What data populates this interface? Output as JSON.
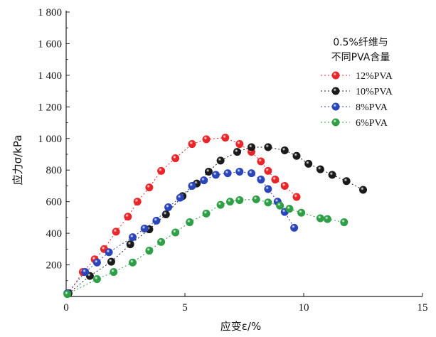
{
  "chart_data": {
    "type": "scatter",
    "xlabel": "应变ε/%",
    "ylabel": "应力σ/kPa",
    "xlim": [
      0,
      15
    ],
    "ylim": [
      0,
      1800
    ],
    "x_ticks": [
      0,
      5,
      10,
      15
    ],
    "y_ticks": [
      200,
      400,
      600,
      800,
      1000,
      1200,
      1400,
      1600,
      1800
    ],
    "x_tick_labels": [
      "0",
      "5",
      "10",
      "15"
    ],
    "y_tick_labels": [
      "200",
      "400",
      "600",
      "800",
      "1 000",
      "1 200",
      "1 400",
      "1 600",
      "1 800"
    ],
    "legend_title": [
      "0.5%纤维与",
      "不同PVA含量"
    ],
    "legend_position": "top-right",
    "series": [
      {
        "name": "12%PVA",
        "color": "#e8262a",
        "points": [
          [
            0.1,
            20
          ],
          [
            0.7,
            155
          ],
          [
            1.2,
            235
          ],
          [
            1.6,
            300
          ],
          [
            2.1,
            410
          ],
          [
            2.6,
            505
          ],
          [
            3.0,
            600
          ],
          [
            3.5,
            690
          ],
          [
            4.0,
            795
          ],
          [
            4.6,
            875
          ],
          [
            5.3,
            965
          ],
          [
            5.9,
            995
          ],
          [
            6.7,
            1005
          ],
          [
            7.3,
            965
          ],
          [
            7.8,
            915
          ],
          [
            8.2,
            855
          ],
          [
            8.5,
            795
          ],
          [
            8.8,
            740
          ],
          [
            9.2,
            700
          ],
          [
            9.7,
            630
          ]
        ]
      },
      {
        "name": "10%PVA",
        "color": "#1a1a1a",
        "points": [
          [
            0.1,
            20
          ],
          [
            1.0,
            130
          ],
          [
            1.9,
            220
          ],
          [
            2.7,
            330
          ],
          [
            3.5,
            425
          ],
          [
            4.2,
            520
          ],
          [
            4.9,
            635
          ],
          [
            5.5,
            715
          ],
          [
            6.0,
            790
          ],
          [
            6.5,
            860
          ],
          [
            7.2,
            915
          ],
          [
            7.8,
            945
          ],
          [
            8.5,
            945
          ],
          [
            9.2,
            925
          ],
          [
            9.7,
            890
          ],
          [
            10.2,
            840
          ],
          [
            10.7,
            805
          ],
          [
            11.2,
            770
          ],
          [
            11.8,
            730
          ],
          [
            12.5,
            675
          ]
        ]
      },
      {
        "name": "8%PVA",
        "color": "#2a45b8",
        "points": [
          [
            0.05,
            20
          ],
          [
            0.8,
            155
          ],
          [
            1.3,
            215
          ],
          [
            1.8,
            280
          ],
          [
            2.8,
            375
          ],
          [
            3.3,
            430
          ],
          [
            3.8,
            480
          ],
          [
            4.3,
            565
          ],
          [
            4.8,
            625
          ],
          [
            5.3,
            700
          ],
          [
            5.8,
            735
          ],
          [
            6.3,
            770
          ],
          [
            6.8,
            780
          ],
          [
            7.3,
            790
          ],
          [
            7.8,
            780
          ],
          [
            8.2,
            740
          ],
          [
            8.5,
            680
          ],
          [
            8.9,
            600
          ],
          [
            9.2,
            535
          ],
          [
            9.6,
            435
          ]
        ]
      },
      {
        "name": "6%PVA",
        "color": "#2e9e47",
        "points": [
          [
            0.05,
            15
          ],
          [
            1.3,
            110
          ],
          [
            2.0,
            155
          ],
          [
            2.8,
            215
          ],
          [
            3.5,
            290
          ],
          [
            4.0,
            345
          ],
          [
            4.6,
            405
          ],
          [
            5.2,
            470
          ],
          [
            5.9,
            525
          ],
          [
            6.5,
            580
          ],
          [
            6.9,
            600
          ],
          [
            7.3,
            610
          ],
          [
            8.0,
            615
          ],
          [
            8.5,
            595
          ],
          [
            9.0,
            575
          ],
          [
            9.4,
            555
          ],
          [
            9.9,
            530
          ],
          [
            10.7,
            495
          ],
          [
            11.0,
            490
          ],
          [
            11.7,
            470
          ]
        ]
      }
    ]
  }
}
